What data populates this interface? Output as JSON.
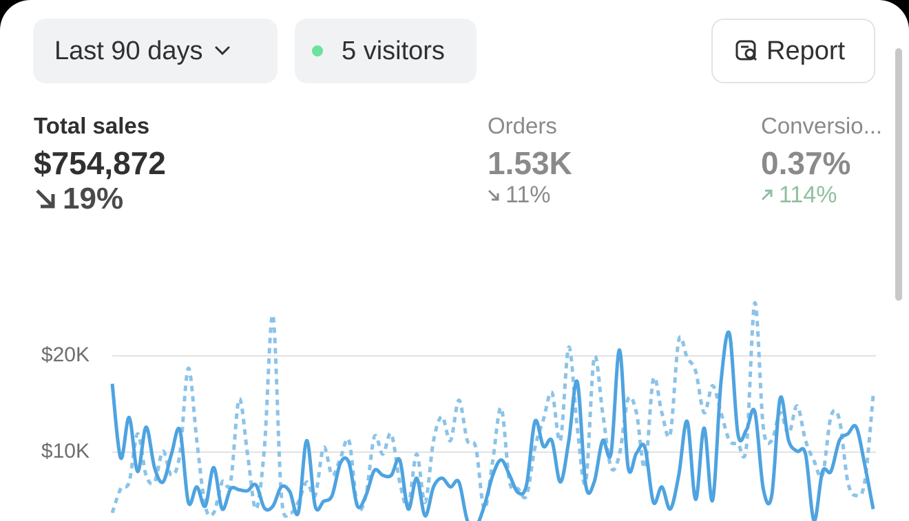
{
  "filters": {
    "date_range": "Last 90 days",
    "visitors": "5 visitors",
    "report": "Report"
  },
  "metrics": [
    {
      "label": "Total sales",
      "value": "$754,872",
      "change": "19%"
    },
    {
      "label": "Orders",
      "value": "1.53K",
      "change": "11%"
    },
    {
      "label": "Conversio...",
      "value": "0.37%",
      "change": "114%"
    }
  ],
  "chart_data": {
    "type": "line",
    "categories": [
      null,
      null,
      null,
      null,
      null,
      null,
      null,
      null,
      null,
      null,
      null,
      null,
      null,
      null,
      null,
      null,
      null,
      null,
      null,
      null,
      null,
      null,
      null,
      null,
      null,
      null,
      null,
      null,
      null,
      null,
      null,
      null,
      null,
      null,
      null,
      null,
      null,
      null,
      null,
      null,
      null,
      null,
      null,
      null,
      null,
      null,
      null,
      null,
      null,
      null,
      null,
      null,
      null,
      null,
      null,
      null,
      null,
      null,
      null,
      null,
      null,
      null,
      null,
      null,
      null,
      null,
      null,
      null,
      null,
      null,
      null,
      null,
      null,
      null,
      null,
      null,
      null,
      null,
      null,
      null,
      null,
      null,
      null,
      null,
      null,
      null,
      null,
      null,
      null,
      null,
      null
    ],
    "series": [
      {
        "color": "#4ea3e0",
        "dash": false,
        "values": [
          17100,
          9400,
          13600,
          8000,
          12600,
          8400,
          6900,
          9800,
          12300,
          4800,
          6400,
          4400,
          8400,
          4100,
          6200,
          6100,
          6000,
          6600,
          4200,
          4400,
          6400,
          5900,
          3700,
          11200,
          4400,
          4900,
          5500,
          8900,
          8900,
          4400,
          5500,
          8100,
          7600,
          7600,
          9200,
          4100,
          7300,
          3400,
          6400,
          7300,
          6400,
          6900,
          2900,
          2300,
          4400,
          7600,
          9200,
          7600,
          5800,
          6600,
          13200,
          10600,
          11200,
          6900,
          11200,
          17300,
          6600,
          6900,
          11200,
          9900,
          20600,
          8500,
          9900,
          10500,
          4800,
          6400,
          4100,
          7600,
          13200,
          5100,
          12500,
          5000,
          17300,
          22300,
          11900,
          12300,
          14200,
          6200,
          5500,
          15600,
          11200,
          10100,
          9800,
          2900,
          8000,
          8000,
          11200,
          11900,
          12600,
          8700,
          4100
        ]
      },
      {
        "color": "#8cc3e8",
        "dash": true,
        "values": [
          3700,
          6200,
          6900,
          11900,
          7600,
          6900,
          10100,
          7600,
          9800,
          18700,
          11200,
          4400,
          3700,
          6900,
          6900,
          15500,
          9800,
          4100,
          10500,
          24200,
          5500,
          3700,
          4800,
          6900,
          5500,
          10500,
          7600,
          9400,
          11200,
          4400,
          5500,
          11600,
          9800,
          11900,
          6900,
          4400,
          9800,
          4800,
          11200,
          13700,
          11200,
          15400,
          11200,
          10500,
          4100,
          9100,
          14600,
          6900,
          6200,
          5500,
          10500,
          13400,
          16200,
          11200,
          20900,
          12600,
          6900,
          19800,
          14100,
          8400,
          9800,
          15500,
          14100,
          8400,
          17600,
          14100,
          11900,
          21600,
          19800,
          18400,
          14100,
          16900,
          14100,
          11200,
          10900,
          10500,
          25500,
          12600,
          11200,
          14100,
          11900,
          14800,
          11200,
          9100,
          7600,
          13700,
          13400,
          6900,
          5500,
          6900,
          15900
        ]
      }
    ],
    "ylim": [
      0,
      30000
    ],
    "yticks": [
      {
        "value": 10000,
        "label": "$10K"
      },
      {
        "value": 20000,
        "label": "$20K"
      }
    ],
    "grid": true
  }
}
